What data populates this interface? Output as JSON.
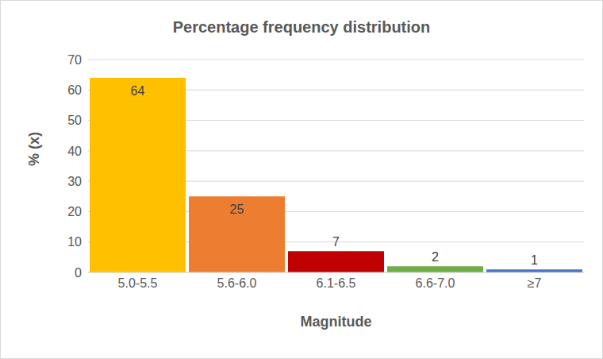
{
  "chart_data": {
    "type": "bar",
    "title": "Percentage frequency distribution",
    "x_label": "Magnitude",
    "y_label": "% (x)",
    "categories": [
      "5.0-5.5",
      "5.6-6.0",
      "6.1-6.5",
      "6.6-7.0",
      "≥7"
    ],
    "values": [
      64,
      25,
      7,
      2,
      1
    ],
    "colors": [
      "#ffc000",
      "#ed7d31",
      "#c00000",
      "#70ad47",
      "#4472c4"
    ],
    "ylim": [
      0,
      70
    ],
    "yticks": [
      0,
      10,
      20,
      30,
      40,
      50,
      60,
      70
    ],
    "grid": true,
    "data_labels": true
  }
}
